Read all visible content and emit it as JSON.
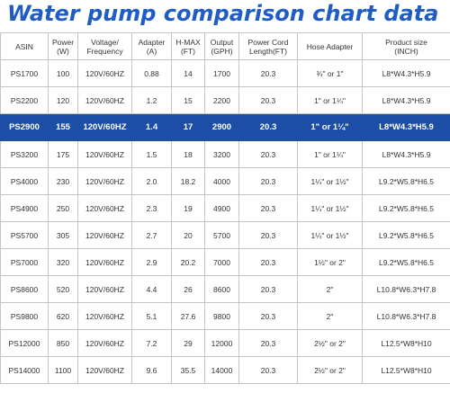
{
  "title": "Water pump comparison chart data",
  "colors": {
    "title": "#1f5cc4",
    "highlight_row": "#1b4ea4",
    "grid": "#c4c4c4"
  },
  "table": {
    "headers": [
      [
        "ASIN"
      ],
      [
        "Power",
        "(W)"
      ],
      [
        "Voltage/",
        "Frequency"
      ],
      [
        "Adapter",
        "(A)"
      ],
      [
        "H-MAX",
        "(FT)"
      ],
      [
        "Output",
        "(GPH)"
      ],
      [
        "Power Cord",
        "Length(FT)"
      ],
      [
        "Hose Adapter"
      ],
      [
        "Product size",
        "(INCH)"
      ]
    ],
    "highlight_index": 2,
    "rows": [
      [
        "PS1700",
        "100",
        "120V/60HZ",
        "0.88",
        "14",
        "1700",
        "20.3",
        "¾\" or 1\"",
        "L8*W4.3*H5.9"
      ],
      [
        "PS2200",
        "120",
        "120V/60HZ",
        "1.2",
        "15",
        "2200",
        "20.3",
        "1\" or 1¼\"",
        "L8*W4.3*H5.9"
      ],
      [
        "PS2900",
        "155",
        "120V/60HZ",
        "1.4",
        "17",
        "2900",
        "20.3",
        "1\" or 1¼\"",
        "L8*W4.3*H5.9"
      ],
      [
        "PS3200",
        "175",
        "120V/60HZ",
        "1.5",
        "18",
        "3200",
        "20.3",
        "1\" or 1¼\"",
        "L8*W4.3*H5.9"
      ],
      [
        "PS4000",
        "230",
        "120V/60HZ",
        "2.0",
        "18.2",
        "4000",
        "20.3",
        "1¼\" or 1½\"",
        "L9.2*W5.8*H6.5"
      ],
      [
        "PS4900",
        "250",
        "120V/60HZ",
        "2.3",
        "19",
        "4900",
        "20.3",
        "1¼\" or 1½\"",
        "L9.2*W5.8*H6.5"
      ],
      [
        "PS5700",
        "305",
        "120V/60HZ",
        "2.7",
        "20",
        "5700",
        "20.3",
        "1¼\" or 1½\"",
        "L9.2*W5.8*H6.5"
      ],
      [
        "PS7000",
        "320",
        "120V/60HZ",
        "2.9",
        "20.2",
        "7000",
        "20.3",
        "1½\" or 2\"",
        "L9.2*W5.8*H6.5"
      ],
      [
        "PS8600",
        "520",
        "120V/60HZ",
        "4.4",
        "26",
        "8600",
        "20.3",
        "2\"",
        "L10.8*W6.3*H7.8"
      ],
      [
        "PS9800",
        "620",
        "120V/60HZ",
        "5.1",
        "27.6",
        "9800",
        "20.3",
        "2\"",
        "L10.8*W6.3*H7.8"
      ],
      [
        "PS12000",
        "850",
        "120V/60HZ",
        "7.2",
        "29",
        "12000",
        "20.3",
        "2½\" or 2\"",
        "L12.5*W8*H10"
      ],
      [
        "PS14000",
        "1100",
        "120V/60HZ",
        "9.6",
        "35.5",
        "14000",
        "20.3",
        "2½\" or 2\"",
        "L12.5*W8*H10"
      ]
    ]
  }
}
